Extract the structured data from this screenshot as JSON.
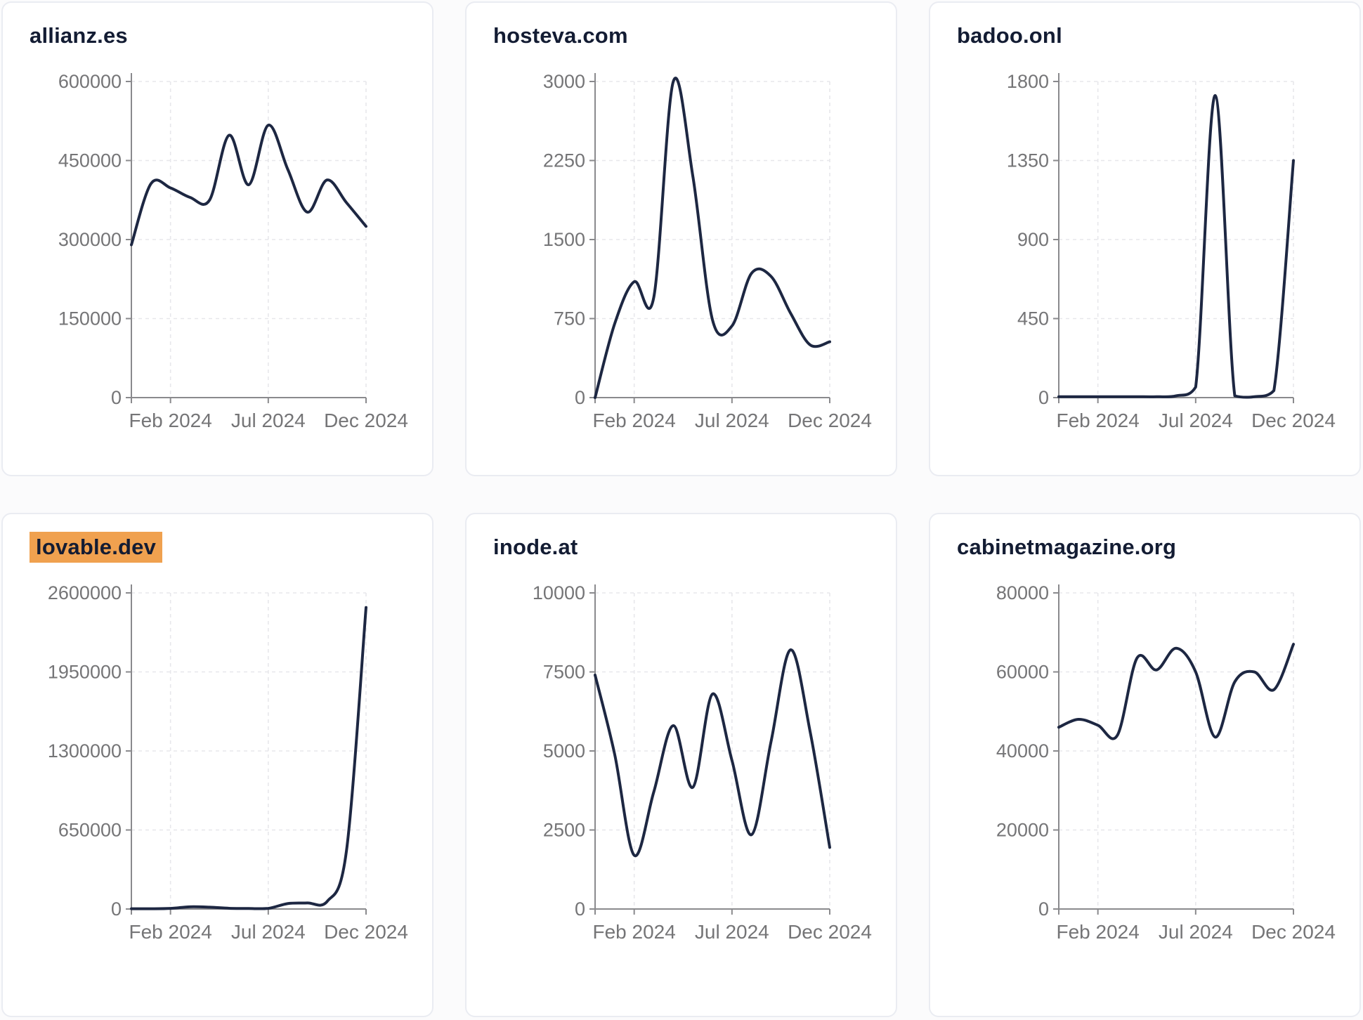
{
  "colors": {
    "line": "#1d2742",
    "highlight": "#F0A14F",
    "axis": "#8a8a8d",
    "tick_label": "#757577",
    "gridline": "#e7e7eb",
    "card_border": "#eaecf2",
    "title": "#131c33"
  },
  "x_axis": {
    "tick_labels": [
      "Feb 2024",
      "Jul 2024",
      "Dec 2024"
    ],
    "tick_indices": [
      2,
      7,
      12
    ]
  },
  "chart_data": [
    {
      "type": "line",
      "title": "allianz.es",
      "highlighted": false,
      "ylim": [
        0,
        600000
      ],
      "y_ticks": [
        0,
        150000,
        300000,
        450000,
        600000
      ],
      "x_tick_labels": [
        "Feb 2024",
        "Jul 2024",
        "Dec 2024"
      ],
      "x_tick_indices": [
        2,
        7,
        12
      ],
      "values": [
        290000,
        406000,
        398000,
        380000,
        375000,
        498000,
        404000,
        517000,
        433000,
        352000,
        413000,
        370000,
        325000
      ]
    },
    {
      "type": "line",
      "title": "hosteva.com",
      "highlighted": false,
      "ylim": [
        0,
        3000
      ],
      "y_ticks": [
        0,
        750,
        1500,
        2250,
        3000
      ],
      "x_tick_labels": [
        "Feb 2024",
        "Jul 2024",
        "Dec 2024"
      ],
      "x_tick_indices": [
        2,
        7,
        12
      ],
      "values": [
        0,
        700,
        1100,
        950,
        3000,
        2100,
        740,
        680,
        1180,
        1150,
        800,
        500,
        530
      ]
    },
    {
      "type": "line",
      "title": "badoo.onl",
      "highlighted": false,
      "ylim": [
        0,
        1800
      ],
      "y_ticks": [
        0,
        450,
        900,
        1350,
        1800
      ],
      "x_tick_labels": [
        "Feb 2024",
        "Jul 2024",
        "Dec 2024"
      ],
      "x_tick_indices": [
        2,
        7,
        12
      ],
      "values": [
        5,
        5,
        5,
        5,
        5,
        5,
        10,
        60,
        1720,
        10,
        5,
        40,
        1350
      ]
    },
    {
      "type": "line",
      "title": "lovable.dev",
      "highlighted": true,
      "ylim": [
        0,
        2600000
      ],
      "y_ticks": [
        0,
        650000,
        1300000,
        1950000,
        2600000
      ],
      "x_tick_labels": [
        "Feb 2024",
        "Jul 2024",
        "Dec 2024"
      ],
      "x_tick_indices": [
        2,
        7,
        12
      ],
      "values": [
        2000,
        2000,
        5000,
        18000,
        15000,
        6000,
        4000,
        5000,
        45000,
        50000,
        60000,
        480000,
        2480000
      ]
    },
    {
      "type": "line",
      "title": "inode.at",
      "highlighted": false,
      "ylim": [
        0,
        10000
      ],
      "y_ticks": [
        0,
        2500,
        5000,
        7500,
        10000
      ],
      "x_tick_labels": [
        "Feb 2024",
        "Jul 2024",
        "Dec 2024"
      ],
      "x_tick_indices": [
        2,
        7,
        12
      ],
      "values": [
        7400,
        4900,
        1700,
        3700,
        5800,
        3850,
        6800,
        4700,
        2350,
        5300,
        8200,
        5600,
        1950
      ]
    },
    {
      "type": "line",
      "title": "cabinetmagazine.org",
      "highlighted": false,
      "ylim": [
        0,
        80000
      ],
      "y_ticks": [
        0,
        20000,
        40000,
        60000,
        80000
      ],
      "x_tick_labels": [
        "Feb 2024",
        "Jul 2024",
        "Dec 2024"
      ],
      "x_tick_indices": [
        2,
        7,
        12
      ],
      "values": [
        46000,
        48000,
        46500,
        44000,
        63500,
        60500,
        66000,
        60000,
        43500,
        57500,
        60000,
        55500,
        67000
      ]
    }
  ]
}
